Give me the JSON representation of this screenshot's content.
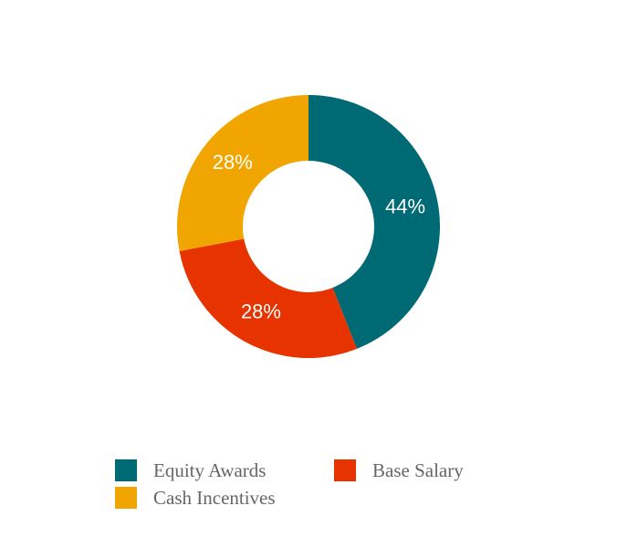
{
  "chart_data": {
    "type": "donut",
    "categories": [
      "Equity Awards",
      "Base Salary",
      "Cash Incentives"
    ],
    "values": [
      44,
      28,
      28
    ],
    "value_labels": [
      "44%",
      "28%",
      "28%"
    ],
    "colors": [
      "#006a74",
      "#e63300",
      "#f0a500"
    ],
    "legend": "bottom"
  }
}
